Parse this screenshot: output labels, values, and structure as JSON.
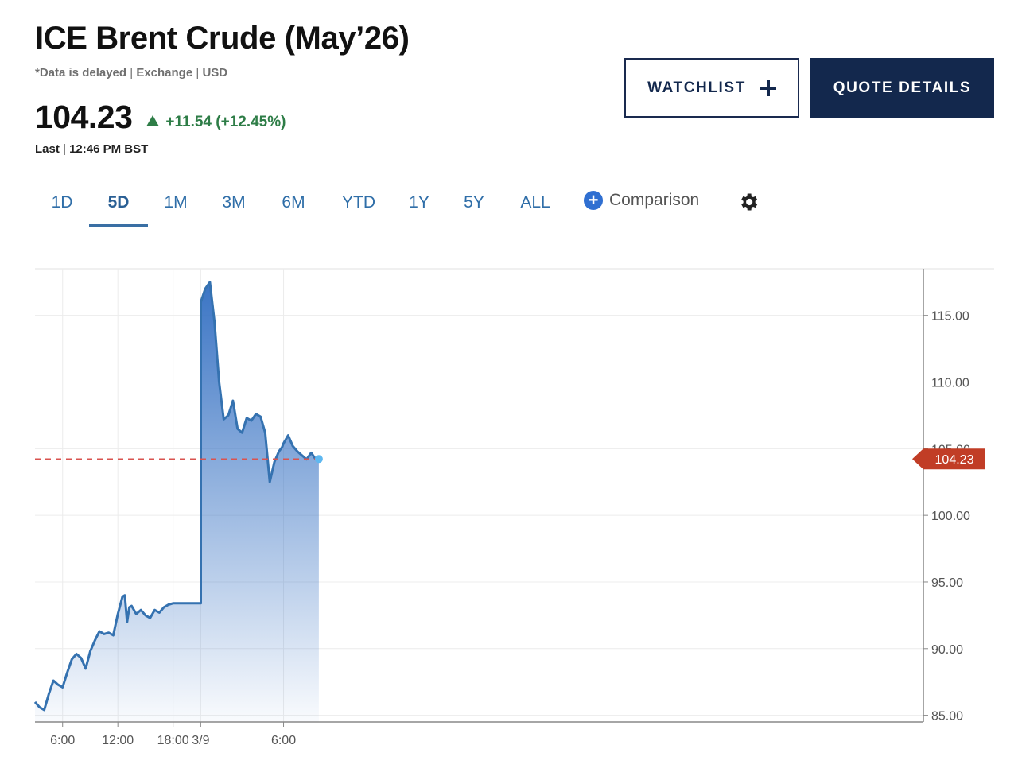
{
  "header": {
    "title": "ICE Brent Crude (May’26)",
    "delayed_note": "*Data is delayed",
    "exchange": "Exchange",
    "currency": "USD",
    "last_price": "104.23",
    "change": "+11.54 (+12.45%)",
    "last_label": "Last",
    "last_time": "12:46 PM BST"
  },
  "buttons": {
    "watchlist": "WATCHLIST",
    "quote_details": "QUOTE DETAILS"
  },
  "tabs": [
    "1D",
    "5D",
    "1M",
    "3M",
    "6M",
    "YTD",
    "1Y",
    "5Y",
    "ALL"
  ],
  "active_tab": "5D",
  "comparison_label": "Comparison",
  "icons": [
    "arrow-up-icon",
    "plus-icon",
    "plus-circle-icon",
    "gear-icon"
  ],
  "colors": {
    "line": "#3572b0",
    "area_top": "#3a74c4",
    "positive": "#2e7d47",
    "last_price_tag": "#c13d26",
    "reference_line": "#d9534f",
    "button_navy": "#13284d",
    "tab_blue": "#2f6ea8"
  },
  "chart_data": {
    "type": "area",
    "title": "",
    "xlabel": "",
    "ylabel": "",
    "x_ticks": [
      "6:00",
      "12:00",
      "18:00",
      "3/9",
      "6:00"
    ],
    "y_ticks": [
      "115.00",
      "110.00",
      "105.00",
      "100.00",
      "95.00",
      "90.00",
      "85.00"
    ],
    "ylim": [
      84.5,
      118.5
    ],
    "last_value": "104.23",
    "reference_line": 104.23,
    "grid": true,
    "legend": "none",
    "series": [
      {
        "x": [
          "03:00",
          "03:30",
          "04:00",
          "04:30",
          "05:00",
          "05:30",
          "06:00",
          "06:30",
          "07:00",
          "07:30",
          "08:00",
          "08:30",
          "09:00",
          "09:30",
          "10:00",
          "10:30",
          "11:00",
          "11:30",
          "12:00",
          "12:30",
          "12:45",
          "13:00",
          "13:15",
          "13:30",
          "14:00",
          "14:30",
          "15:00",
          "15:30",
          "16:00",
          "16:30",
          "17:00",
          "17:30",
          "18:00",
          "19:00",
          "20:00",
          "21:00",
          "21:01",
          "21:30",
          "22:00",
          "22:30",
          "23:00",
          "23:30",
          "00:00",
          "00:30",
          "01:00",
          "01:30",
          "02:00",
          "02:30",
          "03:00",
          "03:30",
          "04:00",
          "04:30",
          "05:00",
          "05:30",
          "05:50",
          "06:00",
          "06:30",
          "07:00",
          "07:30",
          "08:00",
          "08:30",
          "09:00",
          "09:30",
          "09:50"
        ],
        "values": [
          86.0,
          85.6,
          85.4,
          86.6,
          87.6,
          87.3,
          87.1,
          88.2,
          89.2,
          89.6,
          89.3,
          88.5,
          89.8,
          90.6,
          91.3,
          91.1,
          91.2,
          91.0,
          92.6,
          93.9,
          94.0,
          92.0,
          93.1,
          93.2,
          92.6,
          92.9,
          92.5,
          92.3,
          92.9,
          92.7,
          93.1,
          93.3,
          93.4,
          93.4,
          93.4,
          93.4,
          116.0,
          117.0,
          117.5,
          114.5,
          110.0,
          107.2,
          107.5,
          108.6,
          106.5,
          106.2,
          107.3,
          107.1,
          107.6,
          107.4,
          106.2,
          102.5,
          104.0,
          104.8,
          105.1,
          105.4,
          106.0,
          105.2,
          104.8,
          104.5,
          104.2,
          104.7,
          104.2,
          104.23
        ]
      }
    ]
  }
}
